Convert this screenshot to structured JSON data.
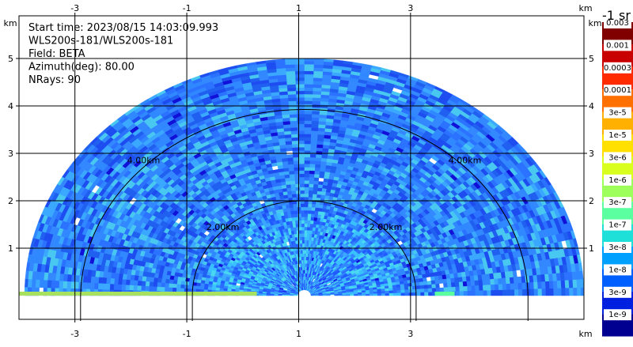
{
  "chart_data": {
    "type": "heatmap",
    "subtype": "radar-ppi-sector",
    "info_lines": [
      "Start time: 2023/08/15 14:03:09.993",
      "WLS200s-181/WLS200s-181",
      "Field: BETA",
      "Azimuth(deg): 80.00",
      "NRays: 90"
    ],
    "x_axis": {
      "unit": "km",
      "ticks": [
        -3,
        -1,
        1,
        3
      ],
      "tick_labels": [
        "-3",
        "-1",
        "1",
        "3"
      ],
      "range": [
        -4.0,
        6.1
      ],
      "grid": true
    },
    "y_axis": {
      "unit": "km",
      "ticks": [
        1,
        2,
        3,
        4,
        5
      ],
      "tick_labels": [
        "1",
        "2",
        "3",
        "4",
        "5"
      ],
      "range": [
        -0.5,
        5.9
      ],
      "grid": true
    },
    "range_rings": [
      {
        "radius_km": 2.0,
        "label": "2.00km"
      },
      {
        "radius_km": 4.0,
        "label": "4.00km"
      }
    ],
    "sector": {
      "center_km": [
        1.1,
        0.0
      ],
      "max_range_km": 5.0,
      "azimuth_range_deg": [
        0,
        180
      ]
    },
    "colorbar": {
      "title": "-1 sr",
      "labels": [
        "0.003",
        "0.001",
        "0.0003",
        "0.0001",
        "3e-5",
        "1e-5",
        "3e-6",
        "1e-6",
        "3e-7",
        "1e-7",
        "3e-8",
        "1e-8",
        "3e-9",
        "1e-9"
      ],
      "colors": [
        "#800000",
        "#c80000",
        "#ff2a00",
        "#ff7000",
        "#ffb000",
        "#ffe000",
        "#d9ff1f",
        "#9cff5c",
        "#5cffa0",
        "#1fe0d9",
        "#00a0ff",
        "#0060ff",
        "#0020e0",
        "#000090"
      ]
    }
  }
}
